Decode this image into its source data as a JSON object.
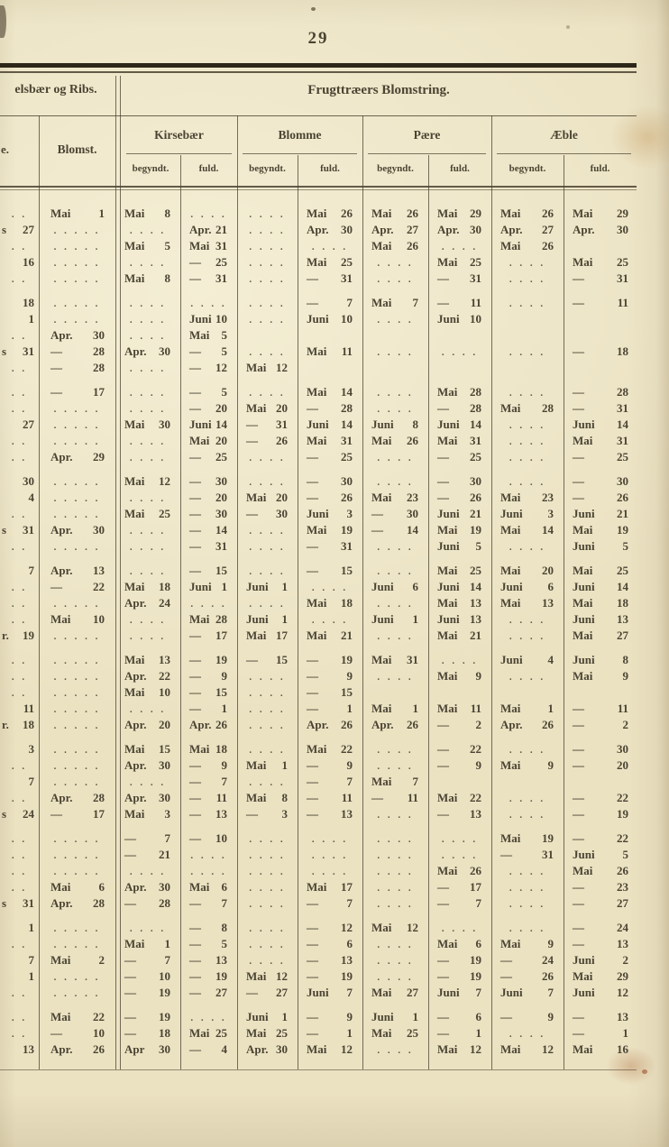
{
  "page": {
    "number": "29"
  },
  "header": {
    "left_section_title": "elsbær og Ribs.",
    "left_col_fragment": "e.",
    "blomst_label": "Blomst.",
    "main_title": "Frugttræers Blomstring.",
    "species": [
      "Kirsebær",
      "Blomme",
      "Pære",
      "Æble"
    ],
    "subheaders": [
      "begyndt.",
      "fuld."
    ]
  },
  "colors": {
    "paper": "#ebe2c2",
    "ink": "#4b4433",
    "rule": "#4a4230",
    "stain": "#c19658"
  },
  "table": {
    "columns": [
      "fragment",
      "Blomst.",
      "Kirsebær begyndt.",
      "Kirsebær fuld.",
      "Blomme begyndt.",
      "Blomme fuld.",
      "Pære begyndt.",
      "Pære fuld.",
      "Æble begyndt.",
      "Æble fuld."
    ],
    "groups": [
      [
        [
          ". .",
          "Mai 1",
          "Mai 8",
          ". . . .",
          ". . . .",
          "Mai 26",
          "Mai 26",
          "Mai 29",
          "Mai 26",
          "Mai 29"
        ],
        [
          "s 27",
          ". . . . .",
          ". . . .",
          "Apr. 21",
          ". . . .",
          "Apr. 30",
          "Apr. 27",
          "Apr. 30",
          "Apr. 27",
          "Apr. 30"
        ],
        [
          ". .",
          ". . . . .",
          "Mai 5",
          "Mai 31",
          ". . . .",
          ". . . .",
          "Mai 26",
          ". . . .",
          "Mai 26",
          ""
        ],
        [
          "16",
          ". . . . .",
          ". . . .",
          "— 25",
          ". . . .",
          "Mai 25",
          ". . . .",
          "Mai 25",
          ". . . .",
          "Mai 25"
        ],
        [
          ". .",
          ". . . . .",
          "Mai 8",
          "— 31",
          ". . . .",
          "— 31",
          ". . . .",
          "— 31",
          ". . . .",
          "— 31"
        ]
      ],
      [
        [
          "18",
          ". . . . .",
          ". . . .",
          ". . . .",
          ". . . .",
          "— 7",
          "Mai 7",
          "— 11",
          ". . . .",
          "— 11"
        ],
        [
          "1",
          ". . . . .",
          ". . . .",
          "Juni 10",
          ". . . .",
          "Juni 10",
          ". . . .",
          "Juni 10",
          "",
          ""
        ],
        [
          ". .",
          "Apr. 30",
          ". . . .",
          "Mai 5",
          "",
          "",
          "",
          "",
          "",
          ""
        ],
        [
          "s 31",
          "— 28",
          "Apr. 30",
          "— 5",
          ". . . .",
          "Mai 11",
          ". . . .",
          ". . . .",
          ". . . .",
          "— 18"
        ],
        [
          ". .",
          "— 28",
          ". . . .",
          "— 12",
          "Mai 12",
          "",
          "",
          "",
          "",
          ""
        ]
      ],
      [
        [
          ". .",
          "— 17",
          ". . . .",
          "— 5",
          ". . . .",
          "Mai 14",
          ". . . .",
          "Mai 28",
          ". . . .",
          "— 28"
        ],
        [
          ". .",
          ". . . . .",
          ". . . .",
          "— 20",
          "Mai 20",
          "— 28",
          ". . . .",
          "— 28",
          "Mai 28",
          "— 31"
        ],
        [
          "27",
          ". . . . .",
          "Mai 30",
          "Juni 14",
          "— 31",
          "Juni 14",
          "Juni 8",
          "Juni 14",
          ". . . .",
          "Juni 14"
        ],
        [
          ". .",
          ". . . . .",
          ". . . .",
          "Mai 20",
          "— 26",
          "Mai 31",
          "Mai 26",
          "Mai 31",
          ". . . .",
          "Mai 31"
        ],
        [
          ". .",
          "Apr. 29",
          ". . . .",
          "— 25",
          ". . . .",
          "— 25",
          ". . . .",
          "— 25",
          ". . . .",
          "— 25"
        ]
      ],
      [
        [
          "30",
          ". . . . .",
          "Mai 12",
          "— 30",
          ". . . .",
          "— 30",
          ". . . .",
          "— 30",
          ". . . .",
          "— 30"
        ],
        [
          "4",
          ". . . . .",
          ". . . .",
          "— 20",
          "Mai 20",
          "— 26",
          "Mai 23",
          "— 26",
          "Mai 23",
          "— 26"
        ],
        [
          ". .",
          ". . . . .",
          "Mai 25",
          "— 30",
          "— 30",
          "Juni 3",
          "— 30",
          "Juni 21",
          "Juni 3",
          "Juni 21"
        ],
        [
          "s 31",
          "Apr. 30",
          ". . . .",
          "— 14",
          ". . . .",
          "Mai 19",
          "— 14",
          "Mai 19",
          "Mai 14",
          "Mai 19"
        ],
        [
          ". .",
          ". . . . .",
          ". . . .",
          "— 31",
          ". . . .",
          "— 31",
          ". . . .",
          "Juni 5",
          ". . . .",
          "Juni 5"
        ]
      ],
      [
        [
          "7",
          "Apr. 13",
          ". . . .",
          "— 15",
          ". . . .",
          "— 15",
          ". . . .",
          "Mai 25",
          "Mai 20",
          "Mai 25"
        ],
        [
          ". .",
          "— 22",
          "Mai 18",
          "Juni 1",
          "Juni 1",
          ". . . .",
          "Juni 6",
          "Juni 14",
          "Juni 6",
          "Juni 14"
        ],
        [
          ". .",
          ". . . . .",
          "Apr. 24",
          ". . . .",
          ". . . .",
          "Mai 18",
          ". . . .",
          "Mai 13",
          "Mai 13",
          "Mai 18"
        ],
        [
          ". .",
          "Mai 10",
          ". . . .",
          "Mai 28",
          "Juni 1",
          ". . . .",
          "Juni 1",
          "Juni 13",
          ". . . .",
          "Juni 13"
        ],
        [
          "r. 19",
          ". . . . .",
          ". . . .",
          "— 17",
          "Mai 17",
          "Mai 21",
          ". . . .",
          "Mai 21",
          ". . . .",
          "Mai 27"
        ]
      ],
      [
        [
          ". .",
          ". . . . .",
          "Mai 13",
          "— 19",
          "— 15",
          "— 19",
          "Mai 31",
          ". . . .",
          "Juni 4",
          "Juni 8"
        ],
        [
          ". .",
          ". . . . .",
          "Apr. 22",
          "— 9",
          ". . . .",
          "— 9",
          ". . . .",
          "Mai 9",
          ". . . .",
          "Mai 9"
        ],
        [
          ". .",
          ". . . . .",
          "Mai 10",
          "— 15",
          ". . . .",
          "— 15",
          "",
          "",
          "",
          ""
        ],
        [
          "11",
          ". . . . .",
          ". . . .",
          "— 1",
          ". . . .",
          "— 1",
          "Mai 1",
          "Mai 11",
          "Mai 1",
          "— 11"
        ],
        [
          "r. 18",
          ". . . . .",
          "Apr. 20",
          "Apr. 26",
          ". . . .",
          "Apr. 26",
          "Apr. 26",
          "— 2",
          "Apr. 26",
          "— 2"
        ]
      ],
      [
        [
          "3",
          ". . . . .",
          "Mai 15",
          "Mai 18",
          ". . . .",
          "Mai 22",
          ". . . .",
          "— 22",
          ". . . .",
          "— 30"
        ],
        [
          ". .",
          ". . . . .",
          "Apr. 30",
          "— 9",
          "Mai 1",
          "— 9",
          ". . . .",
          "— 9",
          "Mai 9",
          "— 20"
        ],
        [
          "7",
          ". . . . .",
          ". . . .",
          "— 7",
          ". . . .",
          "— 7",
          "Mai 7",
          "",
          "",
          ""
        ],
        [
          ". .",
          "Apr. 28",
          "Apr. 30",
          "— 11",
          "Mai 8",
          "— 11",
          "— 11",
          "Mai 22",
          ". . . .",
          "— 22"
        ],
        [
          "s 24",
          "— 17",
          "Mai 3",
          "— 13",
          "— 3",
          "— 13",
          ". . . .",
          "— 13",
          ". . . .",
          "— 19"
        ]
      ],
      [
        [
          ". .",
          ". . . . .",
          "— 7",
          "— 10",
          ". . . .",
          ". . . .",
          ". . . .",
          ". . . .",
          "Mai 19",
          "— 22"
        ],
        [
          ". .",
          ". . . . .",
          "— 21",
          ". . . .",
          ". . . .",
          ". . . .",
          ". . . .",
          ". . . .",
          "— 31",
          "Juni 5"
        ],
        [
          ". .",
          ". . . . .",
          ". . . .",
          ". . . .",
          ". . . .",
          ". . . .",
          ". . . .",
          "Mai 26",
          ". . . .",
          "Mai 26"
        ],
        [
          ". .",
          "Mai 6",
          "Apr. 30",
          "Mai 6",
          ". . . .",
          "Mai 17",
          ". . . .",
          "— 17",
          ". . . .",
          "— 23"
        ],
        [
          "s 31",
          "Apr. 28",
          "— 28",
          "— 7",
          ". . . .",
          "— 7",
          ". . . .",
          "— 7",
          ". . . .",
          "— 27"
        ]
      ],
      [
        [
          "1",
          ". . . . .",
          ". . . .",
          "— 8",
          ". . . .",
          "— 12",
          "Mai 12",
          ". . . .",
          ". . . .",
          "— 24"
        ],
        [
          ". .",
          ". . . . .",
          "Mai 1",
          "— 5",
          ". . . .",
          "— 6",
          ". . . .",
          "Mai 6",
          "Mai 9",
          "— 13"
        ],
        [
          "7",
          "Mai 2",
          "— 7",
          "— 13",
          ". . . .",
          "— 13",
          ". . . .",
          "— 19",
          "— 24",
          "Juni 2"
        ],
        [
          "1",
          ". . . . .",
          "— 10",
          "— 19",
          "Mai 12",
          "— 19",
          ". . . .",
          "— 19",
          "— 26",
          "Mai 29"
        ],
        [
          ". .",
          ". . . . .",
          "— 19",
          "— 27",
          "— 27",
          "Juni 7",
          "Mai 27",
          "Juni 7",
          "Juni 7",
          "Juni 12"
        ]
      ],
      [
        [
          ". .",
          "Mai 22",
          "— 19",
          ". . . .",
          "Juni 1",
          "— 9",
          "Juni 1",
          "— 6",
          "— 9",
          "— 13"
        ],
        [
          ". .",
          "— 10",
          "— 18",
          "Mai 25",
          "Mai 25",
          "— 1",
          "Mai 25",
          "— 1",
          ". . . .",
          "— 1"
        ],
        [
          "13",
          "Apr. 26",
          "Apr 30",
          "— 4",
          "Apr. 30",
          "Mai 12",
          ". . . .",
          "Mai 12",
          "Mai 12",
          "Mai 16"
        ]
      ]
    ]
  }
}
